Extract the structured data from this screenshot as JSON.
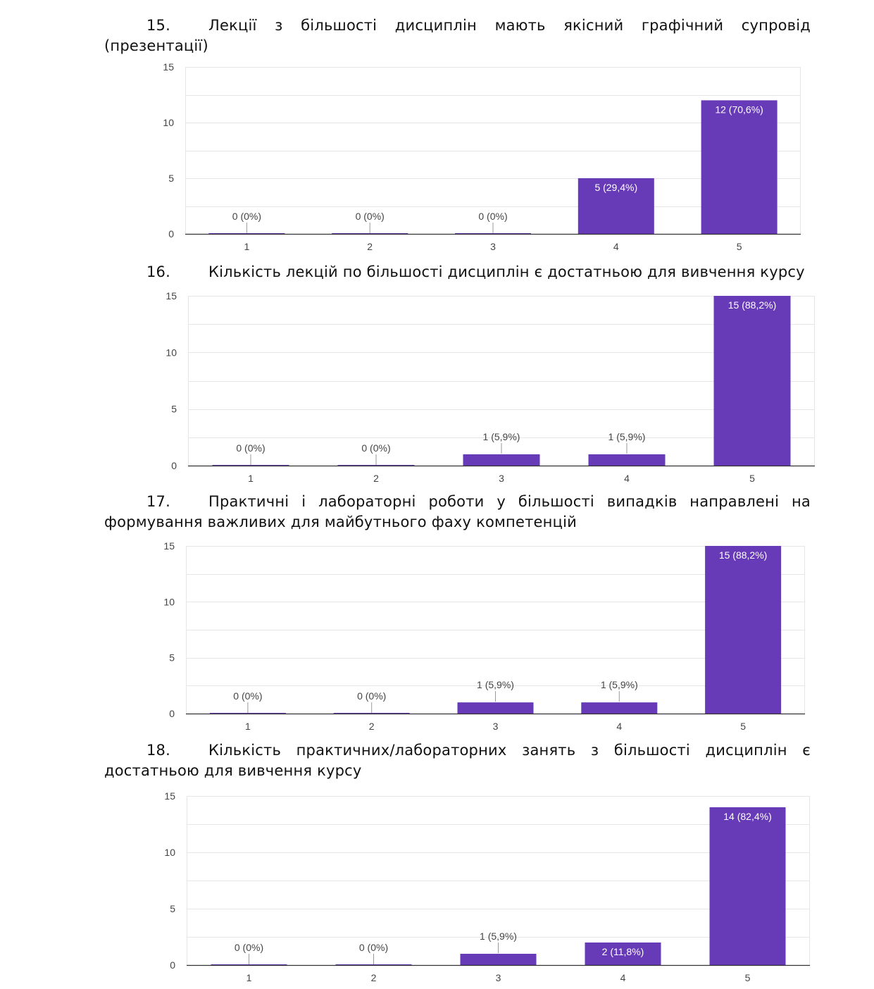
{
  "questions": [
    {
      "number": "15.",
      "text": "Лекції з більшості дисциплін мають якісний графічний супровід (презентації)"
    },
    {
      "number": "16.",
      "text": "Кількість лекцій по більшості дисциплін є достатньою для вивчення курсу"
    },
    {
      "number": "17.",
      "text": "Практичні і лабораторні роботи у більшості випадків направлені на формування важливих для майбутнього фаху компетенцій"
    },
    {
      "number": "18.",
      "text": "Кількість практичних/лабораторних занять з більшості дисциплін є достатньою для вивчення курсу"
    }
  ],
  "colors": {
    "bar": "#673ab7",
    "grid": "#e6e6e6",
    "axis": "#333333",
    "label_outside": "#444444",
    "label_inside": "#ffffff"
  },
  "chart_data": [
    {
      "type": "bar",
      "title": "Лекції з більшості дисциплін мають якісний графічний супровід (презентації)",
      "categories": [
        "1",
        "2",
        "3",
        "4",
        "5"
      ],
      "values": [
        0,
        0,
        0,
        5,
        12
      ],
      "labels": [
        "0 (0%)",
        "0 (0%)",
        "0 (0%)",
        "5 (29,4%)",
        "12 (70,6%)"
      ],
      "yticks": [
        "0",
        "5",
        "10",
        "15"
      ],
      "ylim": [
        0,
        15
      ]
    },
    {
      "type": "bar",
      "title": "Кількість лекцій по більшості дисциплін є достатньою для вивчення курсу",
      "categories": [
        "1",
        "2",
        "3",
        "4",
        "5"
      ],
      "values": [
        0,
        0,
        1,
        1,
        15
      ],
      "labels": [
        "0 (0%)",
        "0 (0%)",
        "1 (5,9%)",
        "1 (5,9%)",
        "15 (88,2%)"
      ],
      "yticks": [
        "0",
        "5",
        "10",
        "15"
      ],
      "ylim": [
        0,
        15
      ]
    },
    {
      "type": "bar",
      "title": "Практичні і лабораторні роботи у більшості випадків направлені на формування важливих для майбутнього фаху компетенцій",
      "categories": [
        "1",
        "2",
        "3",
        "4",
        "5"
      ],
      "values": [
        0,
        0,
        1,
        1,
        15
      ],
      "labels": [
        "0 (0%)",
        "0 (0%)",
        "1 (5,9%)",
        "1 (5,9%)",
        "15 (88,2%)"
      ],
      "yticks": [
        "0",
        "5",
        "10",
        "15"
      ],
      "ylim": [
        0,
        15
      ]
    },
    {
      "type": "bar",
      "title": "Кількість практичних/лабораторних занять з більшості дисциплін є достатньою для вивчення курсу",
      "categories": [
        "1",
        "2",
        "3",
        "4",
        "5"
      ],
      "values": [
        0,
        0,
        1,
        2,
        14
      ],
      "labels": [
        "0 (0%)",
        "0 (0%)",
        "1 (5,9%)",
        "2 (11,8%)",
        "14 (82,4%)"
      ],
      "yticks": [
        "0",
        "5",
        "10",
        "15"
      ],
      "ylim": [
        0,
        15
      ]
    }
  ]
}
